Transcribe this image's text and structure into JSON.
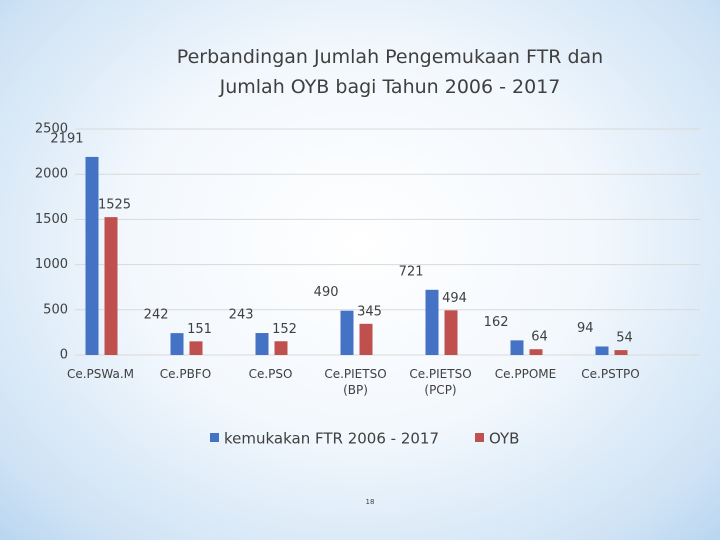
{
  "chart_data": {
    "type": "bar",
    "title": [
      "Perbandingan Jumlah Pengemukaan FTR dan",
      "Jumlah OYB  bagi Tahun 2006 - 2017"
    ],
    "categories": [
      "Ce.PSWa.M",
      "Ce.PBFO",
      "Ce.PSO",
      "Ce.PIETSO (BP)",
      "Ce.PIETSO (PCP)",
      "Ce.PPOME",
      "Ce.PSTPO"
    ],
    "series": [
      {
        "name": "kemukakan FTR 2006 - 2017",
        "color": "#4472c4",
        "values": [
          2191,
          242,
          243,
          490,
          721,
          162,
          94
        ]
      },
      {
        "name": "OYB",
        "color": "#c0504d",
        "values": [
          1525,
          151,
          152,
          345,
          494,
          64,
          54
        ]
      }
    ],
    "ylim": [
      0,
      2500
    ],
    "yticks": [
      0,
      500,
      1000,
      1500,
      2000,
      2500
    ],
    "grid": true,
    "page_number": "18"
  }
}
